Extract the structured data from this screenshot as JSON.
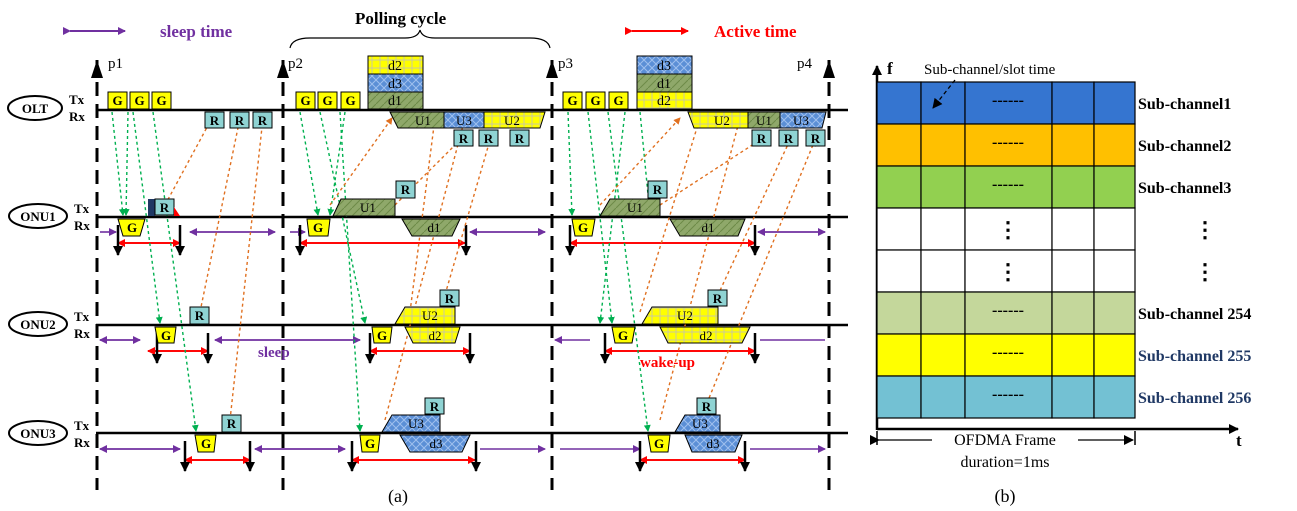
{
  "colors": {
    "sleep": "#7030a0",
    "active": "#ff0000",
    "grant_yellow": "#ffff00",
    "report_teal": "#8fd3d3",
    "d_blue": "#5b8fd6",
    "u_green": "#8fa86a",
    "poll_green": "#00b050",
    "req_orange": "#e07020",
    "sub1": "#3575d0",
    "sub2": "#ffc000",
    "sub3": "#92d050",
    "sub254": "#c4d79b",
    "sub255": "#ffff00",
    "sub256": "#73c1d3",
    "navy_text": "#1f3864"
  },
  "panel_a": {
    "legend": {
      "sleep_time": "sleep time",
      "polling_cycle": "Polling cycle",
      "active_time": "Active time"
    },
    "poll_points": [
      "p1",
      "p2",
      "p3",
      "p4"
    ],
    "nodes": [
      "OLT",
      "ONU1",
      "ONU2",
      "ONU3"
    ],
    "tx": "Tx",
    "rx": "Rx",
    "grant": "G",
    "report": "R",
    "olt_stack_cycle2": [
      "d2",
      "d3",
      "d1"
    ],
    "olt_stack_cycle3": [
      "d3",
      "d1",
      "d2"
    ],
    "olt_rx_cycle2": [
      "U1",
      "U3",
      "U2"
    ],
    "olt_rx_cycle3": [
      "U2",
      "U1",
      "U3"
    ],
    "onu_up": [
      "U1",
      "U2",
      "U3"
    ],
    "onu_down": [
      "d1",
      "d2",
      "d3"
    ],
    "sleep_label": "sleep",
    "wakeup_label": "wake-up",
    "caption": "(a)"
  },
  "panel_b": {
    "f_axis": "f",
    "t_axis": "t",
    "slot_label": "Sub-channel/slot time",
    "dots": "------",
    "vdots": "⋮",
    "rows": [
      "Sub-channel1",
      "Sub-channel2",
      "Sub-channel3",
      "",
      "",
      "Sub-channel 254",
      "Sub-channel 255",
      "Sub-channel 256"
    ],
    "frame_line1": "OFDMA Frame",
    "frame_line2": "duration=1ms",
    "caption": "(b)"
  }
}
